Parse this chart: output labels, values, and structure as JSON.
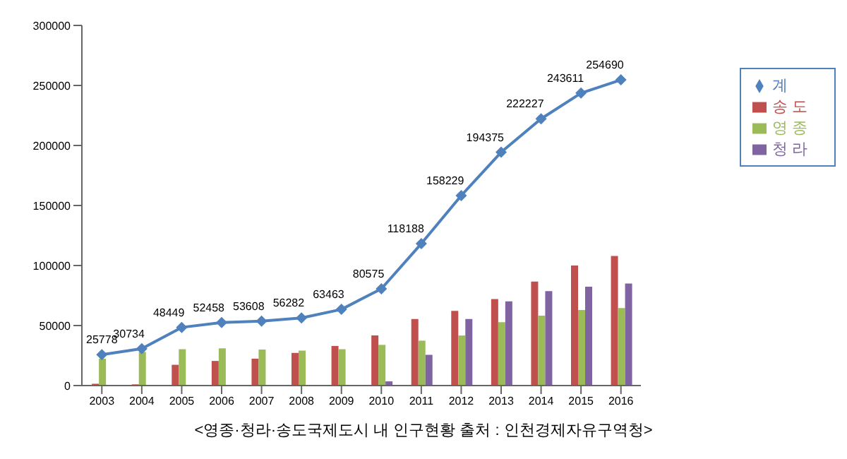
{
  "chart_data": {
    "type": "bar",
    "categories": [
      "2003",
      "2004",
      "2005",
      "2006",
      "2007",
      "2008",
      "2009",
      "2010",
      "2011",
      "2012",
      "2013",
      "2014",
      "2015",
      "2016"
    ],
    "series": [
      {
        "name": "송 도",
        "color": "#c0504d",
        "values": [
          1500,
          1000,
          17300,
          20500,
          22400,
          27200,
          33000,
          41700,
          55500,
          62200,
          72000,
          86600,
          100000,
          107900
        ]
      },
      {
        "name": "영 종",
        "color": "#9bbb59",
        "values": [
          22400,
          28000,
          30300,
          31000,
          30000,
          29100,
          30300,
          33900,
          37400,
          41700,
          52800,
          58300,
          63000,
          64600
        ]
      },
      {
        "name": "청 라",
        "color": "#8064a2",
        "values": [
          null,
          null,
          null,
          null,
          null,
          null,
          null,
          3500,
          25600,
          55500,
          70100,
          78700,
          82300,
          85000
        ]
      },
      {
        "name": "계",
        "type": "line",
        "color": "#4f81bd",
        "marker": "diamond",
        "values": [
          25778,
          30734,
          48449,
          52458,
          53608,
          56282,
          63463,
          80575,
          118188,
          158229,
          194375,
          222227,
          243611,
          254690
        ],
        "value_labels": [
          "25778",
          "30734",
          "48449",
          "52458",
          "53608",
          "56282",
          "63463",
          "80575",
          "118188",
          "158229",
          "194375",
          "222227",
          "243611",
          "254690"
        ]
      }
    ],
    "ylim": [
      0,
      300000
    ],
    "yticks": [
      0,
      50000,
      100000,
      150000,
      200000,
      250000,
      300000
    ],
    "grid": false,
    "legend": "top right",
    "annotations": [
      "<영종·청라·송도국제도시 내 인구현황 출처 : 인천경제자유구역청>"
    ]
  }
}
